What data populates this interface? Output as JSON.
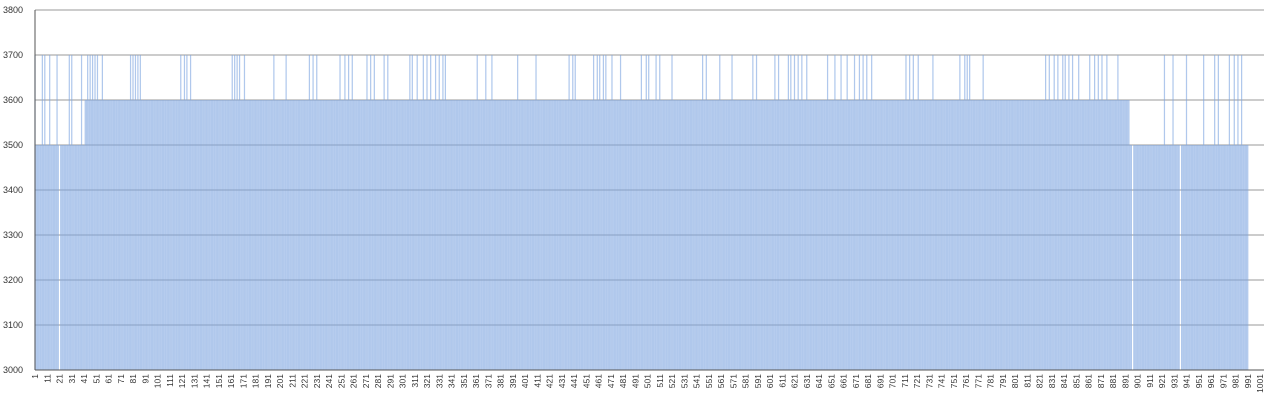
{
  "chart_data": {
    "type": "bar",
    "title": "",
    "xlabel": "",
    "ylabel": "",
    "ylim": [
      3000,
      3800
    ],
    "xlim": [
      1,
      1001
    ],
    "y_ticks": [
      "3000",
      "3100",
      "3200",
      "3300",
      "3400",
      "3500",
      "3600",
      "3700",
      "3800"
    ],
    "x_ticks": [
      "1",
      "11",
      "21",
      "31",
      "41",
      "51",
      "61",
      "71",
      "81",
      "91",
      "101",
      "111",
      "121",
      "131",
      "141",
      "151",
      "161",
      "171",
      "181",
      "191",
      "201",
      "211",
      "221",
      "231",
      "241",
      "251",
      "261",
      "271",
      "281",
      "291",
      "301",
      "311",
      "321",
      "331",
      "341",
      "351",
      "361",
      "371",
      "381",
      "391",
      "401",
      "411",
      "421",
      "431",
      "441",
      "451",
      "461",
      "471",
      "481",
      "491",
      "501",
      "511",
      "521",
      "531",
      "541",
      "551",
      "561",
      "571",
      "581",
      "591",
      "601",
      "611",
      "621",
      "631",
      "641",
      "651",
      "661",
      "671",
      "681",
      "691",
      "701",
      "711",
      "721",
      "731",
      "741",
      "751",
      "761",
      "771",
      "781",
      "791",
      "801",
      "811",
      "821",
      "831",
      "841",
      "851",
      "861",
      "871",
      "881",
      "891",
      "901",
      "911",
      "921",
      "931",
      "941",
      "951",
      "961",
      "971",
      "981",
      "991",
      "1001"
    ],
    "grid": "horizontal",
    "legend": "none",
    "colors": {
      "bar": "#7fa7e0",
      "grid": "#9a9a9a",
      "axis": "#555555"
    },
    "series": [
      {
        "segments": [
          {
            "from": 1,
            "to": 20,
            "baseline": 3500,
            "spike_level": 3700,
            "spike_points": [
              1,
              7,
              9,
              13,
              19
            ]
          },
          {
            "from": 21,
            "to": 21,
            "baseline": 3000,
            "spike_level": 3000,
            "spike_points": []
          },
          {
            "from": 22,
            "to": 41,
            "baseline": 3500,
            "spike_level": 3700,
            "spike_points": [
              29,
              31,
              39,
              42
            ]
          },
          {
            "from": 42,
            "to": 893,
            "baseline": 3600,
            "spike_level": 3700,
            "spike_points": [
              44,
              46,
              48,
              50,
              52,
              56,
              79,
              81,
              83,
              85,
              87,
              120,
              123,
              125,
              128,
              162,
              164,
              166,
              168,
              172,
              196,
              206,
              225,
              228,
              231,
              250,
              254,
              257,
              260,
              272,
              275,
              278,
              286,
              289,
              307,
              309,
              313,
              318,
              321,
              324,
              328,
              331,
              334,
              336,
              362,
              369,
              374,
              395,
              410,
              437,
              440,
              442,
              457,
              460,
              462,
              465,
              467,
              472,
              479,
              496,
              500,
              502,
              508,
              511,
              521,
              546,
              549,
              560,
              570,
              587,
              590,
              605,
              608,
              616,
              618,
              621,
              624,
              627,
              631,
              648,
              654,
              659,
              664,
              670,
              674,
              677,
              680,
              684,
              712,
              715,
              718,
              722,
              734,
              756,
              760,
              762,
              764,
              775,
              826,
              829,
              833,
              836,
              840,
              842,
              845,
              848,
              853,
              862,
              866,
              869,
              872,
              876,
              885
            ]
          },
          {
            "from": 894,
            "to": 896,
            "baseline": 3500,
            "spike_level": 3600,
            "spike_points": [
              894
            ]
          },
          {
            "from": 897,
            "to": 897,
            "baseline": 3000,
            "spike_level": 3000,
            "spike_points": []
          },
          {
            "from": 898,
            "to": 935,
            "baseline": 3500,
            "spike_level": 3700,
            "spike_points": [
              923,
              930
            ]
          },
          {
            "from": 936,
            "to": 936,
            "baseline": 3000,
            "spike_level": 3000,
            "spike_points": []
          },
          {
            "from": 937,
            "to": 991,
            "baseline": 3500,
            "spike_level": 3700,
            "spike_points": [
              941,
              955,
              964,
              967,
              976,
              980,
              983,
              986
            ]
          }
        ]
      }
    ]
  }
}
